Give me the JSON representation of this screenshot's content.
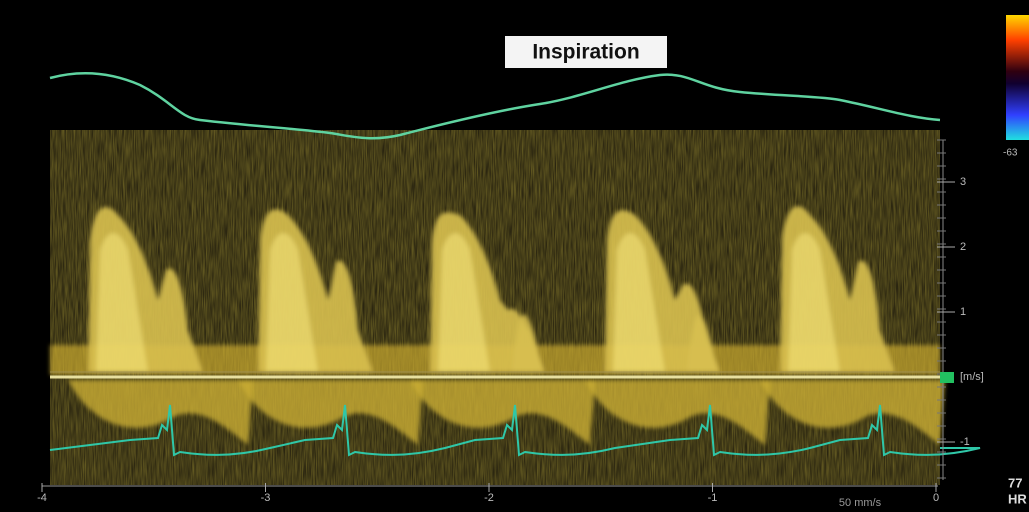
{
  "label": "Inspiration",
  "velocity_axis": {
    "unit": "[m/s]",
    "ticks": [
      3,
      2,
      1,
      -1
    ]
  },
  "time_axis": {
    "ticks": [
      -4,
      -3,
      -2,
      -1,
      0
    ]
  },
  "sweep_speed": "50 mm/s",
  "color_scale_label": "-63",
  "heart_rate": {
    "value": "77",
    "label": "HR"
  }
}
